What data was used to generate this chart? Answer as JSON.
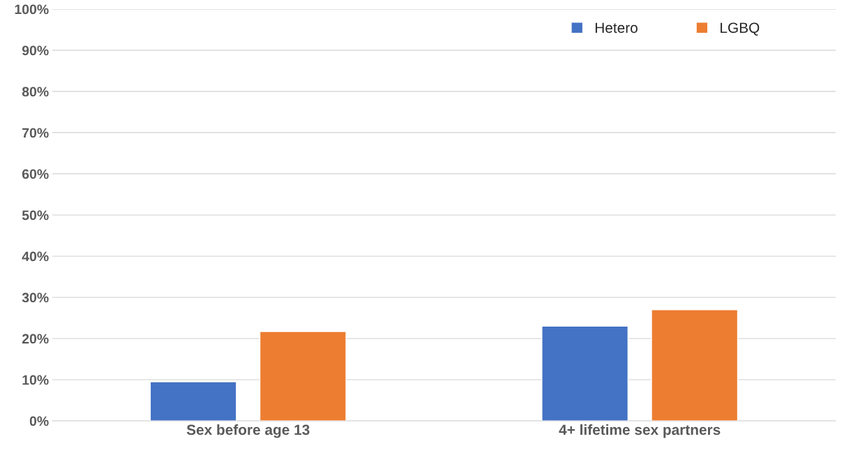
{
  "chart_data": {
    "type": "bar",
    "categories": [
      "Sex before age 13",
      "4+ lifetime sex partners"
    ],
    "series": [
      {
        "name": "Hetero",
        "color": "#4472c4",
        "values": [
          9.5,
          23
        ]
      },
      {
        "name": "LGBQ",
        "color": "#ed7d31",
        "values": [
          21.7,
          27
        ]
      }
    ],
    "ylim": [
      0,
      100
    ],
    "yticks": [
      {
        "value": 0,
        "label": "0%"
      },
      {
        "value": 10,
        "label": "10%"
      },
      {
        "value": 20,
        "label": "20%"
      },
      {
        "value": 30,
        "label": "30%"
      },
      {
        "value": 40,
        "label": "40%"
      },
      {
        "value": 50,
        "label": "50%"
      },
      {
        "value": 60,
        "label": "60%"
      },
      {
        "value": 70,
        "label": "70%"
      },
      {
        "value": 80,
        "label": "80%"
      },
      {
        "value": 90,
        "label": "90%"
      },
      {
        "value": 100,
        "label": "100%"
      }
    ],
    "grid": "y",
    "legend": "top right"
  }
}
